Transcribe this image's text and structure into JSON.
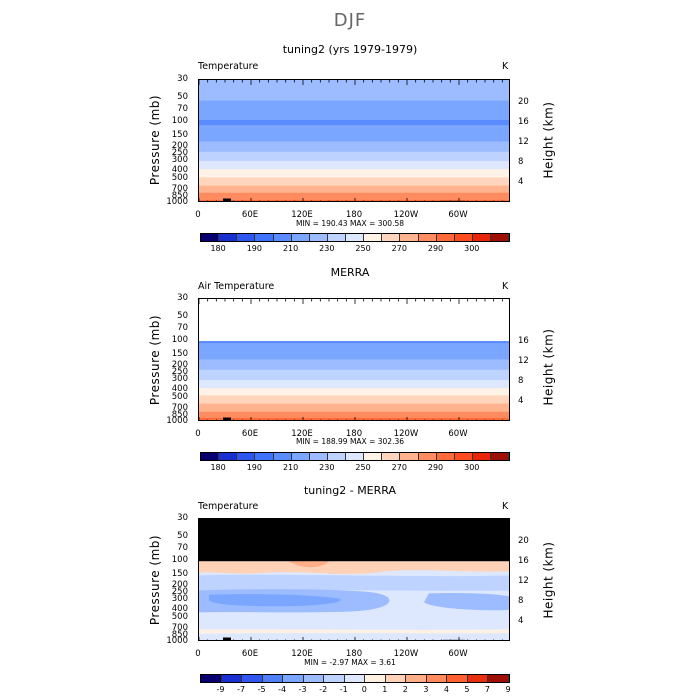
{
  "page": {
    "title": "DJF"
  },
  "colors": {
    "abs_scale": [
      "#08006e",
      "#1a2fcf",
      "#2f57f0",
      "#3f73ff",
      "#5a8bff",
      "#7aa6ff",
      "#9cbcff",
      "#bed3ff",
      "#dde8ff",
      "#fff2e6",
      "#ffd6bd",
      "#ffb48f",
      "#ff8c60",
      "#ff6a3a",
      "#ff4d1f",
      "#e8250a",
      "#9e0f04"
    ],
    "diff_scale": [
      "#08006e",
      "#1a2fcf",
      "#2f57f0",
      "#4f7ff5",
      "#7aa6ff",
      "#9cbcff",
      "#bed3ff",
      "#dde8ff",
      "#fff0e4",
      "#ffd2b8",
      "#ffae88",
      "#ff8a5e",
      "#ff6030",
      "#e83010",
      "#9e0f04"
    ],
    "mask": "#000000"
  },
  "chart_data": [
    {
      "type": "heatmap",
      "title": "tuning2 (yrs 1979-1979)",
      "variable": "Temperature",
      "unit": "K",
      "ylabel": "Pressure (mb)",
      "ylabel_right": "Height (km)",
      "y_ticks": [
        "30",
        "50",
        "70",
        "100",
        "150",
        "200",
        "250",
        "300",
        "400",
        "500",
        "700",
        "850",
        "1000"
      ],
      "y_ticks_right": [
        "20",
        "16",
        "12",
        "8",
        "4"
      ],
      "x_ticks": [
        "0",
        "60E",
        "120E",
        "180",
        "120W",
        "60W"
      ],
      "minmax": "MIN = 190.43   MAX = 300.58",
      "colorbar_labels": [
        "180",
        "190",
        "210",
        "230",
        "250",
        "270",
        "290",
        "300"
      ],
      "profile_p": [
        30,
        50,
        70,
        100,
        150,
        200,
        250,
        300,
        400,
        500,
        700,
        850,
        1000
      ],
      "profile_T": [
        214,
        212,
        204,
        199,
        205,
        215,
        223,
        230,
        242,
        252,
        266,
        276,
        286
      ]
    },
    {
      "type": "heatmap",
      "title": "MERRA",
      "variable": "Air Temperature",
      "unit": "K",
      "ylabel": "Pressure (mb)",
      "ylabel_right": "Height (km)",
      "y_ticks": [
        "30",
        "50",
        "70",
        "100",
        "150",
        "200",
        "250",
        "300",
        "400",
        "500",
        "700",
        "850",
        "1000"
      ],
      "y_ticks_right": [
        "16",
        "12",
        "8",
        "4"
      ],
      "x_ticks": [
        "0",
        "60E",
        "120E",
        "180",
        "120W",
        "60W"
      ],
      "minmax": "MIN = 188.99   MAX = 302.36",
      "colorbar_labels": [
        "180",
        "190",
        "210",
        "230",
        "250",
        "270",
        "290",
        "300"
      ],
      "profile_p": [
        100,
        150,
        200,
        250,
        300,
        400,
        500,
        700,
        850,
        1000
      ],
      "profile_T": [
        199,
        206,
        216,
        223,
        230,
        242,
        253,
        267,
        277,
        287
      ]
    },
    {
      "type": "heatmap",
      "title": "tuning2 - MERRA",
      "variable": "Temperature",
      "unit": "K",
      "ylabel": "Pressure (mb)",
      "ylabel_right": "Height (km)",
      "y_ticks": [
        "30",
        "50",
        "70",
        "100",
        "150",
        "200",
        "250",
        "300",
        "400",
        "500",
        "700",
        "850",
        "1000"
      ],
      "y_ticks_right": [
        "20",
        "16",
        "12",
        "8",
        "4"
      ],
      "x_ticks": [
        "0",
        "60E",
        "120E",
        "180",
        "120W",
        "60W"
      ],
      "minmax": "MIN =  -2.97   MAX =   3.61",
      "colorbar_labels": [
        "-9",
        "-7",
        "-5",
        "-4",
        "-3",
        "-2",
        "-1",
        "0",
        "1",
        "2",
        "3",
        "4",
        "5",
        "7",
        "9"
      ]
    }
  ]
}
